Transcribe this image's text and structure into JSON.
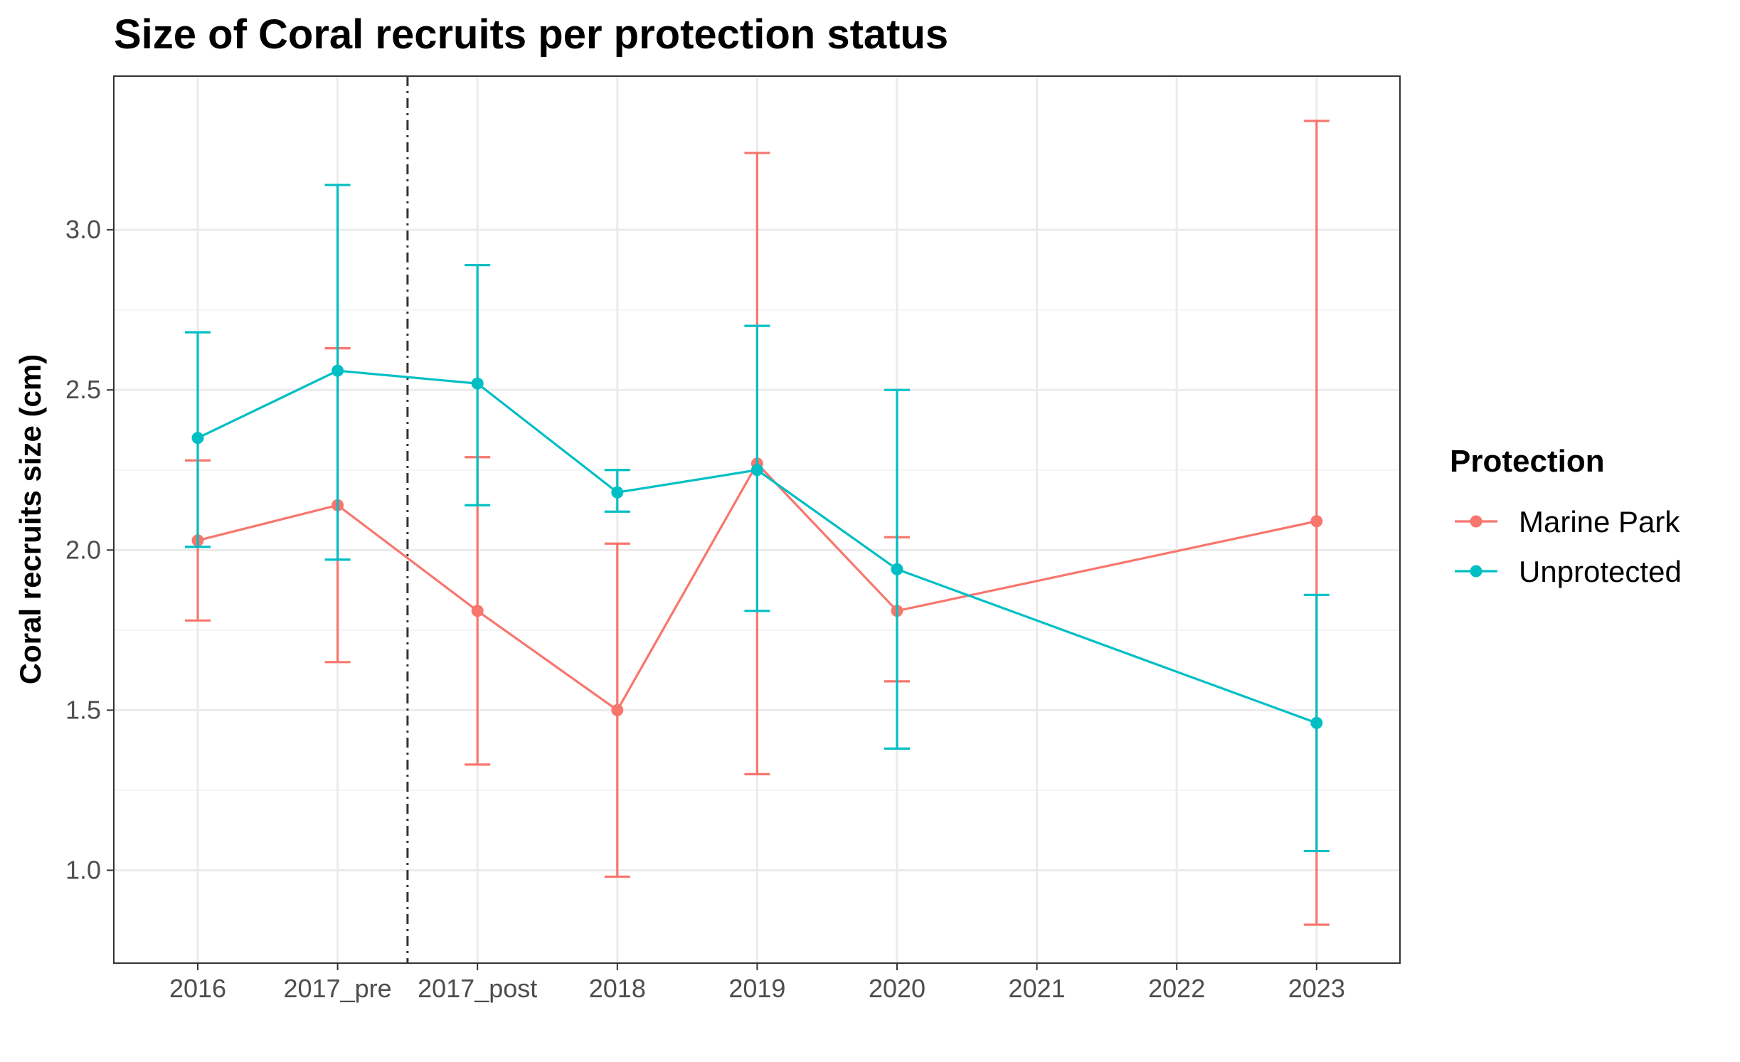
{
  "chart_data": {
    "type": "line",
    "title": "Size of Coral recruits per protection status",
    "xlabel": "",
    "ylabel": "Coral recruits size (cm)",
    "categories": [
      "2016",
      "2017_pre",
      "2017_post",
      "2018",
      "2019",
      "2020",
      "2021",
      "2022",
      "2023"
    ],
    "ylim": [
      0.71,
      3.48
    ],
    "yticks": [
      1.0,
      1.5,
      2.0,
      2.5,
      3.0
    ],
    "ytick_labels": [
      "1.0",
      "1.5",
      "2.0",
      "2.5",
      "3.0"
    ],
    "grid": true,
    "reference_line": {
      "between": [
        "2017_pre",
        "2017_post"
      ],
      "style": "dashdot",
      "color": "#333333"
    },
    "legend": {
      "title": "Protection",
      "position": "right"
    },
    "series": [
      {
        "name": "Marine Park",
        "color": "#F8766D",
        "points": [
          {
            "x": "2016",
            "y": 2.03,
            "low": 1.78,
            "high": 2.28
          },
          {
            "x": "2017_pre",
            "y": 2.14,
            "low": 1.65,
            "high": 2.63
          },
          {
            "x": "2017_post",
            "y": 1.81,
            "low": 1.33,
            "high": 2.29
          },
          {
            "x": "2018",
            "y": 1.5,
            "low": 0.98,
            "high": 2.02
          },
          {
            "x": "2019",
            "y": 2.27,
            "low": 1.3,
            "high": 3.24
          },
          {
            "x": "2020",
            "y": 1.81,
            "low": 1.59,
            "high": 2.04
          },
          {
            "x": "2023",
            "y": 2.09,
            "low": 0.83,
            "high": 3.34
          }
        ]
      },
      {
        "name": "Unprotected",
        "color": "#00BFC4",
        "points": [
          {
            "x": "2016",
            "y": 2.35,
            "low": 2.01,
            "high": 2.68
          },
          {
            "x": "2017_pre",
            "y": 2.56,
            "low": 1.97,
            "high": 3.14
          },
          {
            "x": "2017_post",
            "y": 2.52,
            "low": 2.14,
            "high": 2.89
          },
          {
            "x": "2018",
            "y": 2.18,
            "low": 2.12,
            "high": 2.25
          },
          {
            "x": "2019",
            "y": 2.25,
            "low": 1.81,
            "high": 2.7
          },
          {
            "x": "2020",
            "y": 1.94,
            "low": 1.38,
            "high": 2.5
          },
          {
            "x": "2023",
            "y": 1.46,
            "low": 1.06,
            "high": 1.86
          }
        ]
      }
    ]
  }
}
